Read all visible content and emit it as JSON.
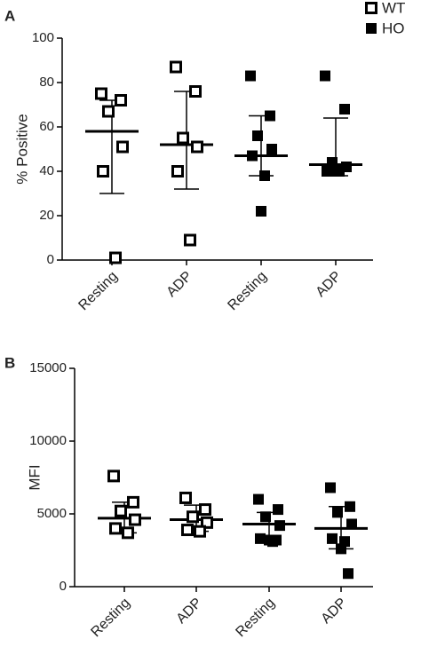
{
  "legend": [
    {
      "name": "WT",
      "filled": false
    },
    {
      "name": "HO",
      "filled": true
    }
  ],
  "chart_data": [
    {
      "type": "dot_plot",
      "panel": "A",
      "ylabel": "% Positive",
      "categories": [
        "Resting",
        "ADP",
        "Resting",
        "ADP"
      ],
      "ylim": [
        0,
        100
      ],
      "yticks": [
        0,
        20,
        40,
        60,
        80,
        100
      ],
      "series": [
        {
          "color": "#000000",
          "filled": false,
          "values": [
            [
              75,
              72,
              67,
              51,
              40,
              1
            ],
            [
              87,
              76,
              55,
              51,
              40,
              9
            ],
            null,
            null
          ],
          "mean": [
            58,
            52,
            null,
            null
          ],
          "error_high": [
            72,
            76,
            null,
            null
          ],
          "error_low": [
            30,
            32,
            null,
            null
          ]
        },
        {
          "color": "#000000",
          "filled": true,
          "values": [
            null,
            null,
            [
              83,
              65,
              56,
              50,
              47,
              38,
              22
            ],
            [
              83,
              68,
              44,
              42,
              40,
              40,
              40
            ]
          ],
          "mean": [
            null,
            null,
            47,
            43
          ],
          "error_high": [
            null,
            null,
            65,
            64
          ],
          "error_low": [
            null,
            null,
            38,
            38
          ]
        }
      ]
    },
    {
      "type": "dot_plot",
      "panel": "B",
      "ylabel": "MFI",
      "categories": [
        "Resting",
        "ADP",
        "Resting",
        "ADP"
      ],
      "ylim": [
        0,
        15000
      ],
      "yticks": [
        0,
        5000,
        10000,
        15000
      ],
      "series": [
        {
          "color": "#000000",
          "filled": false,
          "values": [
            [
              7600,
              5800,
              5200,
              4600,
              4000,
              3700
            ],
            [
              6100,
              5300,
              4800,
              4400,
              3900,
              3800
            ],
            null,
            null
          ],
          "mean": [
            4700,
            4600,
            null,
            null
          ],
          "error_high": [
            5800,
            5600,
            null,
            null
          ],
          "error_low": [
            3700,
            3800,
            null,
            null
          ]
        },
        {
          "color": "#000000",
          "filled": true,
          "values": [
            null,
            null,
            [
              6000,
              5300,
              4800,
              4200,
              3300,
              3100,
              3200,
              3200
            ],
            [
              6800,
              5500,
              5100,
              4300,
              3300,
              3100,
              2600,
              900
            ]
          ],
          "mean": [
            null,
            null,
            4300,
            4000
          ],
          "error_high": [
            null,
            null,
            5100,
            5500
          ],
          "error_low": [
            null,
            null,
            3500,
            2600
          ]
        }
      ]
    }
  ]
}
